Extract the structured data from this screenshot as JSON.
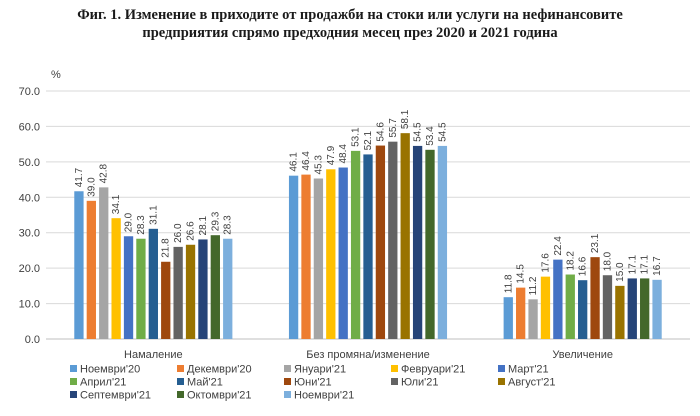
{
  "title_line1": "Фиг. 1. Изменение в приходите от продажби на стоки или услуги на нефинансовите",
  "title_line2": "предприятия спрямо предходния месец през 2020 и 2021 година",
  "chart_data": {
    "type": "bar",
    "title": "Фиг. 1. Изменение в приходите от продажби на стоки или услуги на нефинансовите предприятия спрямо предходния месец през 2020 и 2021 година",
    "ylabel": "%",
    "ylim": [
      0,
      70
    ],
    "yticks": [
      "0.0",
      "10.0",
      "20.0",
      "30.0",
      "40.0",
      "50.0",
      "60.0",
      "70.0"
    ],
    "grid": true,
    "legend_position": "bottom",
    "categories": [
      "Намаление",
      "Без промяна/изменение",
      "Увеличение"
    ],
    "series": [
      {
        "name": "Ноември'20",
        "color": "#5B9BD5",
        "values": [
          41.7,
          46.1,
          11.8
        ]
      },
      {
        "name": "Декември'20",
        "color": "#ED7D31",
        "values": [
          39.0,
          46.4,
          14.5
        ]
      },
      {
        "name": "Януари'21",
        "color": "#A5A5A5",
        "values": [
          42.8,
          45.3,
          11.2
        ]
      },
      {
        "name": "Февруари'21",
        "color": "#FFC000",
        "values": [
          34.1,
          47.9,
          17.6
        ]
      },
      {
        "name": "Март'21",
        "color": "#4472C4",
        "values": [
          29.0,
          48.4,
          22.4
        ]
      },
      {
        "name": "Април'21",
        "color": "#70AD47",
        "values": [
          28.3,
          53.1,
          18.2
        ]
      },
      {
        "name": "Май'21",
        "color": "#255E91",
        "values": [
          31.1,
          52.1,
          16.6
        ]
      },
      {
        "name": "Юни'21",
        "color": "#9E480E",
        "values": [
          21.8,
          54.6,
          23.1
        ]
      },
      {
        "name": "Юли'21",
        "color": "#636363",
        "values": [
          26.0,
          55.7,
          18.0
        ]
      },
      {
        "name": "Август'21",
        "color": "#997300",
        "values": [
          26.6,
          58.1,
          15.0
        ]
      },
      {
        "name": "Септември'21",
        "color": "#264478",
        "values": [
          28.1,
          54.5,
          17.1
        ]
      },
      {
        "name": "Октомври'21",
        "color": "#43682B",
        "values": [
          29.3,
          53.4,
          17.1
        ]
      },
      {
        "name": "Ноември'21",
        "color": "#7CAFDD",
        "values": [
          28.3,
          54.5,
          16.7
        ]
      }
    ]
  }
}
